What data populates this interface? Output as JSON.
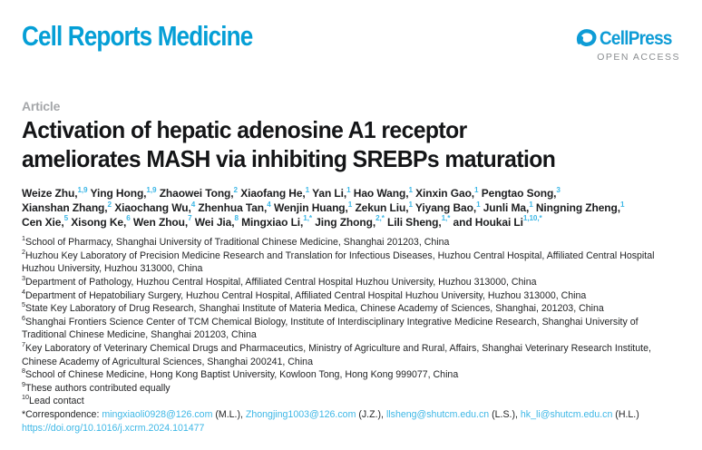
{
  "journal": {
    "name": "Cell Reports Medicine"
  },
  "publisher": {
    "name": "CellPress",
    "open_access": "OPEN ACCESS",
    "logo_color": "#0E9CD6"
  },
  "article": {
    "kind_label": "Article",
    "title_line1": "Activation of hepatic adenosine A1 receptor",
    "title_line2": "ameliorates MASH via inhibiting SREBPs maturation"
  },
  "authors": {
    "lines": [
      [
        {
          "t": "Weize Zhu,",
          "s": "1,9"
        },
        {
          "t": "Ying Hong,",
          "s": "1,9"
        },
        {
          "t": "Zhaowei Tong,",
          "s": "2"
        },
        {
          "t": "Xiaofang He,",
          "s": "1"
        },
        {
          "t": "Yan Li,",
          "s": "1"
        },
        {
          "t": "Hao Wang,",
          "s": "1"
        },
        {
          "t": "Xinxin Gao,",
          "s": "1"
        },
        {
          "t": "Pengtao Song,",
          "s": "3"
        }
      ],
      [
        {
          "t": "Xianshan Zhang,",
          "s": "2"
        },
        {
          "t": "Xiaochang Wu,",
          "s": "4"
        },
        {
          "t": "Zhenhua Tan,",
          "s": "4"
        },
        {
          "t": "Wenjin Huang,",
          "s": "1"
        },
        {
          "t": "Zekun Liu,",
          "s": "1"
        },
        {
          "t": "Yiyang Bao,",
          "s": "1"
        },
        {
          "t": "Junli Ma,",
          "s": "1"
        },
        {
          "t": "Ningning Zheng,",
          "s": "1"
        }
      ],
      [
        {
          "t": "Cen Xie,",
          "s": "5"
        },
        {
          "t": "Xisong Ke,",
          "s": "6"
        },
        {
          "t": "Wen Zhou,",
          "s": "7"
        },
        {
          "t": "Wei Jia,",
          "s": "8"
        },
        {
          "t": "Mingxiao Li,",
          "s": "1,*"
        },
        {
          "t": "Jing Zhong,",
          "s": "2,*"
        },
        {
          "t": "Lili Sheng,",
          "s": "1,*"
        },
        {
          "t": "and Houkai Li",
          "s": "1,10,*"
        }
      ]
    ]
  },
  "affiliations": [
    {
      "sup": "1",
      "text": "School of Pharmacy, Shanghai University of Traditional Chinese Medicine, Shanghai 201203, China"
    },
    {
      "sup": "2",
      "text": "Huzhou Key Laboratory of Precision Medicine Research and Translation for Infectious Diseases, Huzhou Central Hospital, Affiliated Central Hospital Huzhou University, Huzhou 313000, China"
    },
    {
      "sup": "3",
      "text": "Department of Pathology, Huzhou Central Hospital, Affiliated Central Hospital Huzhou University, Huzhou 313000, China"
    },
    {
      "sup": "4",
      "text": "Department of Hepatobiliary Surgery, Huzhou Central Hospital, Affiliated Central Hospital Huzhou University, Huzhou 313000, China"
    },
    {
      "sup": "5",
      "text": "State Key Laboratory of Drug Research, Shanghai Institute of Materia Medica, Chinese Academy of Sciences, Shanghai, 201203, China"
    },
    {
      "sup": "6",
      "text": "Shanghai Frontiers Science Center of TCM Chemical Biology, Institute of Interdisciplinary Integrative Medicine Research, Shanghai University of Traditional Chinese Medicine, Shanghai 201203, China"
    },
    {
      "sup": "7",
      "text": "Key Laboratory of Veterinary Chemical Drugs and Pharmaceutics, Ministry of Agriculture and Rural, Affairs, Shanghai Veterinary Research Institute, Chinese Academy of Agricultural Sciences, Shanghai 200241, China"
    },
    {
      "sup": "8",
      "text": "School of Chinese Medicine, Hong Kong Baptist University, Kowloon Tong, Hong Kong 999077, China"
    },
    {
      "sup": "9",
      "text": "These authors contributed equally"
    },
    {
      "sup": "10",
      "text": "Lead contact"
    }
  ],
  "correspondence": {
    "label": "*Correspondence:",
    "entries": [
      {
        "email": "mingxiaoli0928@126.com",
        "after": " (M.L.), "
      },
      {
        "email": "Zhongjing1003@126.com",
        "after": " (J.Z.), "
      },
      {
        "email": "llsheng@shutcm.edu.cn",
        "after": " (L.S.), "
      },
      {
        "email": "hk_li@shutcm.edu.cn",
        "after": " (H.L.)"
      }
    ]
  },
  "doi": "https://doi.org/10.1016/j.xcrm.2024.101477",
  "colors": {
    "brand_blue": "#059FD6",
    "link_cyan": "#3DB7E6",
    "muted_gray": "#A5A7AA",
    "open_access_gray": "#8A8D90",
    "text": "#1c1d1f"
  }
}
